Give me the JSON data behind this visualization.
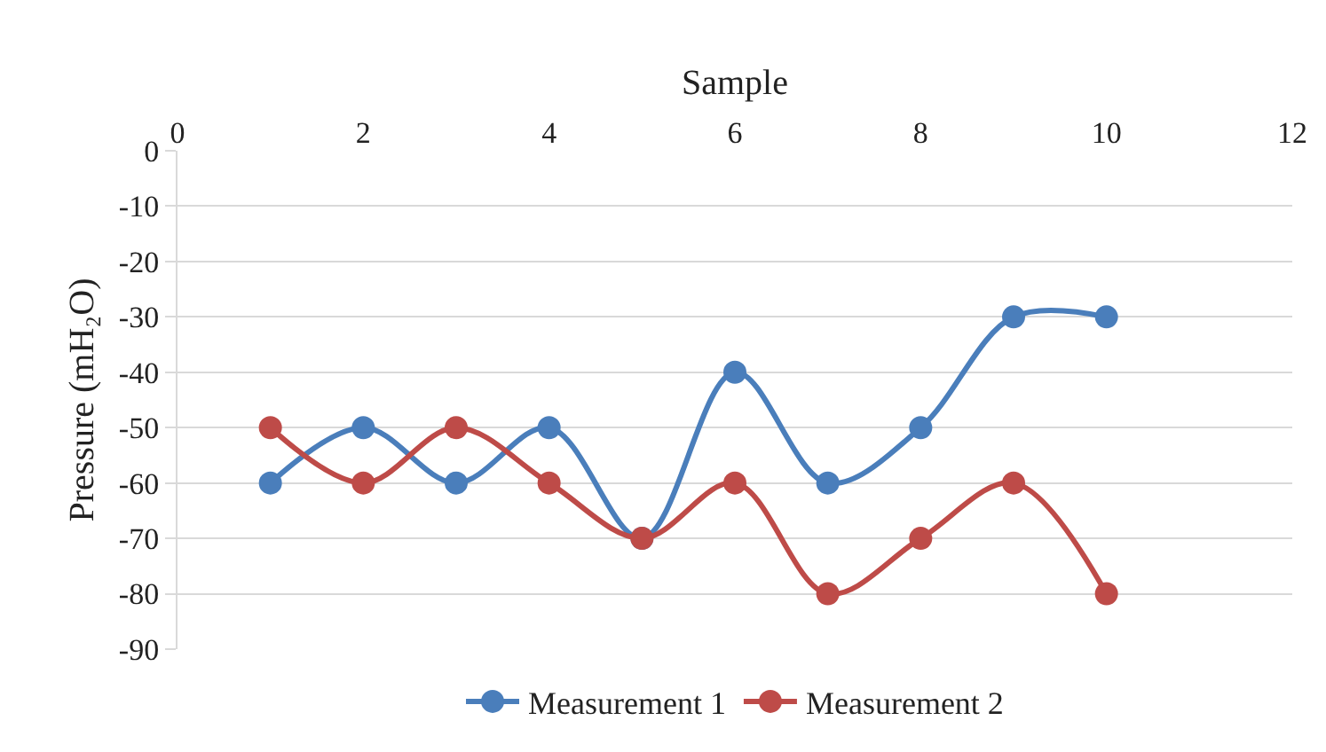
{
  "chart_data": {
    "type": "line",
    "xlabel": "Sample",
    "ylabel": "Pressure (mH₂O)",
    "x": [
      1,
      2,
      3,
      4,
      5,
      6,
      7,
      8,
      9,
      10
    ],
    "series": [
      {
        "name": "Measurement 1",
        "color": "#4a7ebb",
        "values": [
          -60,
          -50,
          -60,
          -50,
          -70,
          -40,
          -60,
          -50,
          -30,
          -30
        ]
      },
      {
        "name": "Measurement 2",
        "color": "#be4b48",
        "values": [
          -50,
          -60,
          -50,
          -60,
          -70,
          -60,
          -80,
          -70,
          -60,
          -80
        ]
      }
    ],
    "xlim": [
      0,
      12
    ],
    "xticks": [
      0,
      2,
      4,
      6,
      8,
      10,
      12
    ],
    "ylim": [
      -90,
      0
    ],
    "yticks": [
      0,
      -10,
      -20,
      -30,
      -40,
      -50,
      -60,
      -70,
      -80,
      -90
    ],
    "grid": "y",
    "legend": "bottom",
    "marker": "circle",
    "line_style": "solid"
  }
}
